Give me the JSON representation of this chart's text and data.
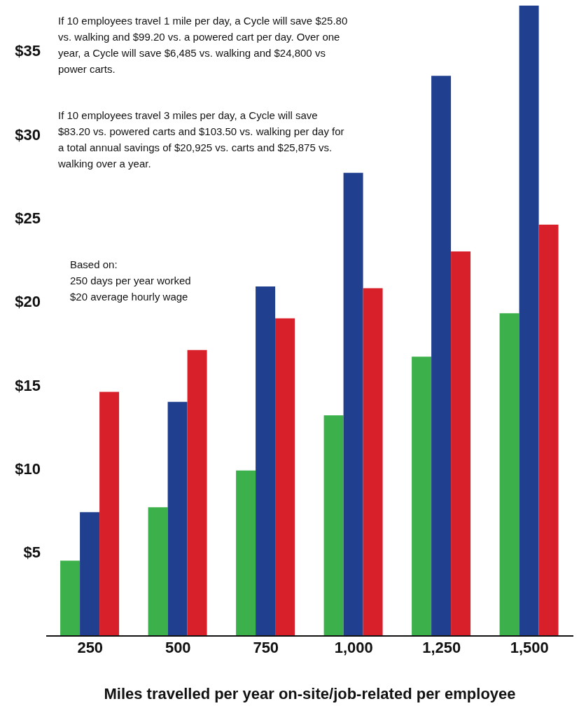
{
  "chart_data": {
    "type": "bar",
    "xlabel": "Miles travelled per year on-site/job-related per employee",
    "categories": [
      "250",
      "500",
      "750",
      "1,000",
      "1,250",
      "1,500"
    ],
    "series": [
      {
        "color": "#3cb04a",
        "values": [
          4.5,
          7.7,
          9.9,
          13.2,
          16.7,
          19.3
        ]
      },
      {
        "color": "#213f8f",
        "values": [
          7.4,
          14.0,
          20.9,
          27.7,
          33.5,
          37.7
        ]
      },
      {
        "color": "#d8202a",
        "values": [
          14.6,
          17.1,
          19.0,
          20.8,
          23.0,
          24.6
        ]
      }
    ],
    "ylim": [
      0,
      37.7
    ],
    "yticks": [
      {
        "value": 5,
        "label": "$5"
      },
      {
        "value": 10,
        "label": "$10"
      },
      {
        "value": 15,
        "label": "$15"
      },
      {
        "value": 20,
        "label": "$20"
      },
      {
        "value": 25,
        "label": "$25"
      },
      {
        "value": 30,
        "label": "$30"
      },
      {
        "value": 35,
        "label": "$35"
      }
    ],
    "grid": false,
    "legend": false,
    "annotations": [
      "If 10 employees travel 1 mile per day, a Cycle will save $25.80 vs. walking and $99.20 vs. a powered cart per day. Over one year, a Cycle will save $6,485 vs. walking and $24,800 vs power carts.",
      "If 10 employees travel 3 miles per day, a Cycle will save $83.20 vs. powered carts and $103.50 vs. walking per day for a total annual savings of $20,925 vs. carts and $25,875 vs. walking over a year.",
      "Based on:\n250 days per year worked\n$20 average hourly wage"
    ]
  }
}
